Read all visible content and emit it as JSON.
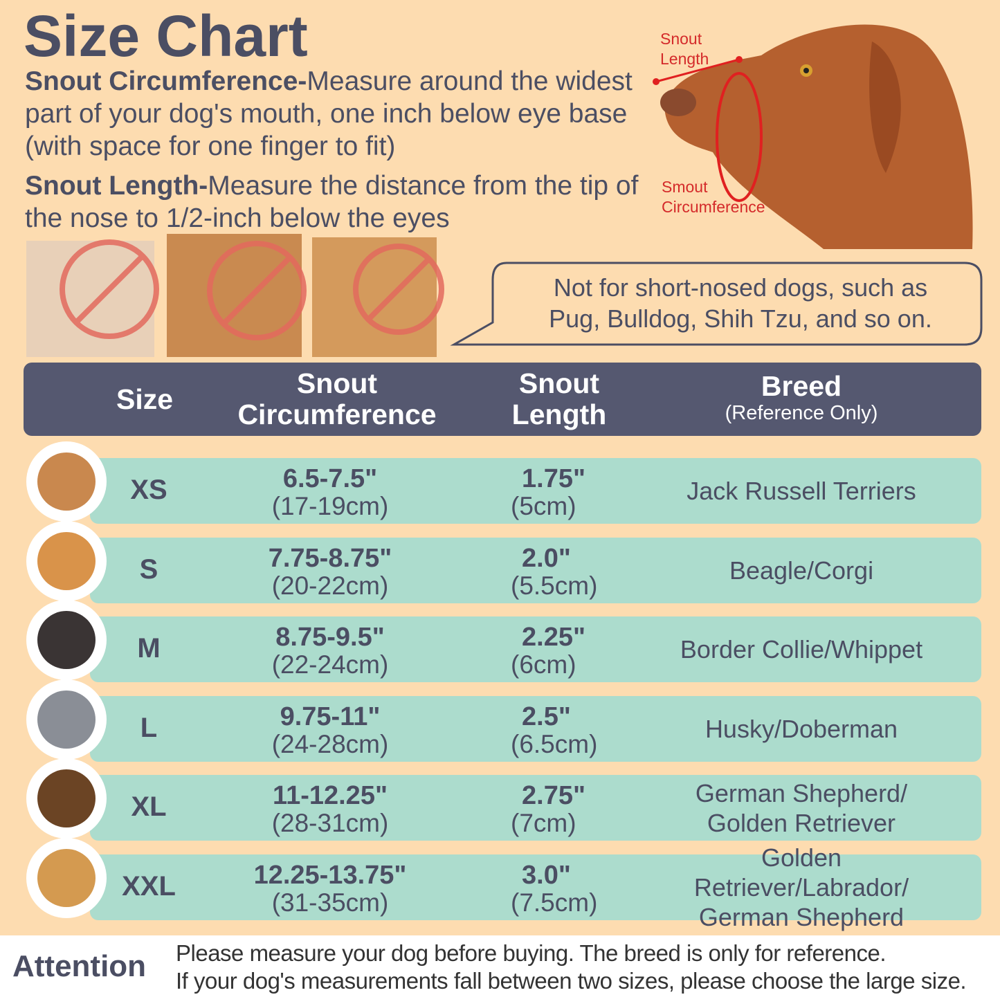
{
  "header": {
    "title": "Size Chart"
  },
  "instructions": [
    {
      "label": "Snout Circumference-",
      "text": "Measure around the widest part of your dog's mouth, one inch below eye base (with space for one finger to fit)"
    },
    {
      "label": "Snout Length-",
      "text": "Measure the distance from the tip of the nose to 1/2-inch below the eyes"
    }
  ],
  "diagram": {
    "length_label": [
      "Snout",
      "Length"
    ],
    "circumference_label": [
      "Smout",
      "Circumference"
    ]
  },
  "note": "Not for short-nosed dogs, such as Pug, Bulldog, Shih Tzu, and so on.",
  "table": {
    "headers": {
      "size": "Size",
      "circumference": "Snout Circumference",
      "length": "Snout Length",
      "breed": "Breed",
      "breed_note": "(Reference Only)"
    },
    "rows": [
      {
        "size": "XS",
        "circ_in": "6.5-7.5\"",
        "circ_cm": "(17-19cm)",
        "len_in": "1.75\"",
        "len_cm": "(5cm)",
        "breed": "Jack Russell Terriers"
      },
      {
        "size": "S",
        "circ_in": "7.75-8.75\"",
        "circ_cm": "(20-22cm)",
        "len_in": "2.0\"",
        "len_cm": "(5.5cm)",
        "breed": "Beagle/Corgi"
      },
      {
        "size": "M",
        "circ_in": "8.75-9.5\"",
        "circ_cm": "(22-24cm)",
        "len_in": "2.25\"",
        "len_cm": "(6cm)",
        "breed": "Border Collie/Whippet"
      },
      {
        "size": "L",
        "circ_in": "9.75-11\"",
        "circ_cm": "(24-28cm)",
        "len_in": "2.5\"",
        "len_cm": "(6.5cm)",
        "breed": "Husky/Doberman"
      },
      {
        "size": "XL",
        "circ_in": "11-12.25\"",
        "circ_cm": "(28-31cm)",
        "len_in": "2.75\"",
        "len_cm": "(7cm)",
        "breed": "German Shepherd/ Golden Retriever"
      },
      {
        "size": "XXL",
        "circ_in": "12.25-13.75\"",
        "circ_cm": "(31-35cm)",
        "len_in": "3.0\"",
        "len_cm": "(7.5cm)",
        "breed": "Golden Retriever/Labrador/ German Shepherd"
      }
    ]
  },
  "attention": {
    "label": "Attention",
    "lines": [
      "Please measure your dog before buying. The breed is only for reference.",
      "If your dog's measurements fall between two sizes, please choose the large size."
    ]
  }
}
